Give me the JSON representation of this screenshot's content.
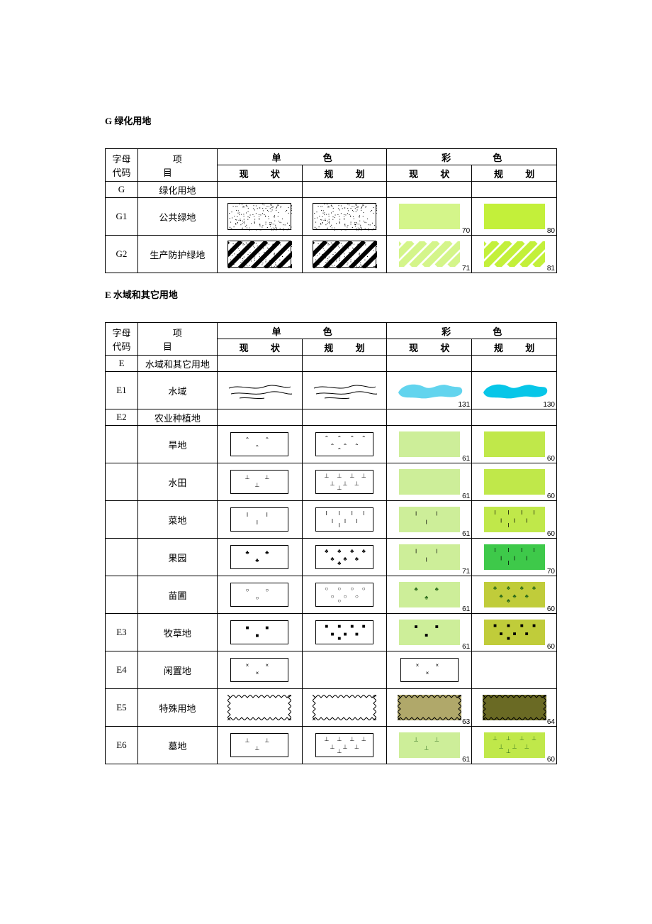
{
  "page": {
    "background_color": "#ffffff",
    "text_color": "#000000",
    "font_family": "SimSun",
    "base_fontsize": 13,
    "swatch_num_fontsize": 10
  },
  "headers": {
    "code": "字母代码",
    "code_line1": "字母",
    "code_line2": "代码",
    "name": "项    目",
    "mono": "单    色",
    "color": "彩    色",
    "status": "现    状",
    "plan": "规    划"
  },
  "section_G": {
    "title": "G  绿化用地",
    "rows": [
      {
        "code": "G",
        "name": "绿化用地",
        "short": true,
        "mono_status": null,
        "mono_plan": null,
        "color_status": null,
        "color_plan": null
      },
      {
        "code": "G1",
        "name": "公共绿地",
        "short": false,
        "mono_status": {
          "type": "noise",
          "w": 90,
          "h": 38,
          "border": "#000000",
          "bg": "#ffffff",
          "dot_color": "#000000",
          "density": 180
        },
        "mono_plan": {
          "type": "noise",
          "w": 90,
          "h": 38,
          "border": "#000000",
          "bg": "#ffffff",
          "dot_color": "#000000",
          "density": 180
        },
        "color_status": {
          "type": "solid",
          "w": 86,
          "h": 36,
          "fill": "#d4f58a",
          "num": 70
        },
        "color_plan": {
          "type": "solid",
          "w": 86,
          "h": 36,
          "fill": "#c3f03a",
          "num": 80
        }
      },
      {
        "code": "G2",
        "name": "生产防护绿地",
        "short": false,
        "mono_status": {
          "type": "hatch_noise",
          "w": 90,
          "h": 38,
          "border": "#000000",
          "bg": "#ffffff",
          "stripe": "#000000",
          "density": 120
        },
        "mono_plan": {
          "type": "hatch_noise",
          "w": 90,
          "h": 38,
          "border": "#000000",
          "bg": "#ffffff",
          "stripe": "#000000",
          "density": 120
        },
        "color_status": {
          "type": "diag_stripe",
          "w": 86,
          "h": 36,
          "bg": "#ffffff",
          "stripe": "#d4f58a",
          "num": 71
        },
        "color_plan": {
          "type": "diag_stripe",
          "w": 86,
          "h": 36,
          "bg": "#ffffff",
          "stripe": "#c3f03a",
          "num": 81
        }
      }
    ]
  },
  "section_E": {
    "title": "E  水域和其它用地",
    "rows": [
      {
        "code": "E",
        "name": "水域和其它用地",
        "short": true,
        "mono_status": null,
        "mono_plan": null,
        "color_status": null,
        "color_plan": null
      },
      {
        "code": "E1",
        "name": "水域",
        "short": false,
        "mono_status": {
          "type": "water_lines",
          "w": 96,
          "h": 34,
          "stroke": "#000000"
        },
        "mono_plan": {
          "type": "water_lines",
          "w": 96,
          "h": 34,
          "stroke": "#000000"
        },
        "color_status": {
          "type": "water_blob",
          "w": 96,
          "h": 34,
          "fill": "#62d4ee",
          "num": 131
        },
        "color_plan": {
          "type": "water_blob",
          "w": 96,
          "h": 34,
          "fill": "#07c6e8",
          "num": 130
        }
      },
      {
        "code": "E2",
        "name": "农业种植地",
        "short": true,
        "mono_status": null,
        "mono_plan": null,
        "color_status": null,
        "color_plan": null
      },
      {
        "code": "",
        "name": "旱地",
        "short": false,
        "mono_status": {
          "type": "glyph_box",
          "w": 82,
          "h": 34,
          "glyph": "⌃",
          "count": 3,
          "border": "#000000"
        },
        "mono_plan": {
          "type": "glyph_box",
          "w": 82,
          "h": 34,
          "glyph": "⌃",
          "count": 8,
          "border": "#000000"
        },
        "color_status": {
          "type": "solid",
          "w": 86,
          "h": 36,
          "fill": "#cdee99",
          "num": 61
        },
        "color_plan": {
          "type": "solid",
          "w": 86,
          "h": 36,
          "fill": "#c0e84a",
          "num": 60
        }
      },
      {
        "code": "",
        "name": "水田",
        "short": false,
        "mono_status": {
          "type": "glyph_box",
          "w": 82,
          "h": 34,
          "glyph": "⊥",
          "count": 3,
          "border": "#000000"
        },
        "mono_plan": {
          "type": "glyph_box",
          "w": 82,
          "h": 34,
          "glyph": "⊥",
          "count": 8,
          "border": "#000000"
        },
        "color_status": {
          "type": "solid",
          "w": 86,
          "h": 36,
          "fill": "#cdee99",
          "num": 61
        },
        "color_plan": {
          "type": "solid",
          "w": 86,
          "h": 36,
          "fill": "#c0e84a",
          "num": 60
        }
      },
      {
        "code": "",
        "name": "菜地",
        "short": false,
        "mono_status": {
          "type": "glyph_box",
          "w": 82,
          "h": 34,
          "glyph": "I",
          "count": 3,
          "border": "#000000"
        },
        "mono_plan": {
          "type": "glyph_box",
          "w": 82,
          "h": 34,
          "glyph": "I",
          "count": 8,
          "border": "#000000"
        },
        "color_status": {
          "type": "glyph_solid",
          "w": 86,
          "h": 36,
          "fill": "#cdee99",
          "glyph": "I",
          "count": 3,
          "glyph_color": "#000000",
          "num": 61
        },
        "color_plan": {
          "type": "glyph_solid",
          "w": 86,
          "h": 36,
          "fill": "#c0e84a",
          "glyph": "I",
          "count": 8,
          "glyph_color": "#000000",
          "num": 60
        }
      },
      {
        "code": "",
        "name": "果园",
        "short": false,
        "mono_status": {
          "type": "glyph_box",
          "w": 82,
          "h": 34,
          "glyph": "♣",
          "count": 3,
          "border": "#000000"
        },
        "mono_plan": {
          "type": "glyph_box",
          "w": 82,
          "h": 34,
          "glyph": "♣",
          "count": 8,
          "border": "#000000"
        },
        "color_status": {
          "type": "glyph_solid",
          "w": 86,
          "h": 36,
          "fill": "#cdee99",
          "glyph": "I",
          "count": 3,
          "glyph_color": "#000000",
          "num": 71
        },
        "color_plan": {
          "type": "glyph_solid",
          "w": 86,
          "h": 36,
          "fill": "#3ec94a",
          "glyph": "I",
          "count": 8,
          "glyph_color": "#000000",
          "num": 70
        }
      },
      {
        "code": "",
        "name": "苗圃",
        "short": false,
        "mono_status": {
          "type": "glyph_box",
          "w": 82,
          "h": 34,
          "glyph": "○",
          "count": 3,
          "border": "#000000"
        },
        "mono_plan": {
          "type": "glyph_box",
          "w": 82,
          "h": 34,
          "glyph": "○",
          "count": 8,
          "border": "#000000"
        },
        "color_status": {
          "type": "glyph_solid",
          "w": 86,
          "h": 36,
          "fill": "#cdee99",
          "glyph": "♣",
          "count": 3,
          "glyph_color": "#2a6a1a",
          "num": 61
        },
        "color_plan": {
          "type": "glyph_solid",
          "w": 86,
          "h": 36,
          "fill": "#c0cc3a",
          "glyph": "♣",
          "count": 8,
          "glyph_color": "#2a6a1a",
          "num": 60
        }
      },
      {
        "code": "E3",
        "name": "牧草地",
        "short": false,
        "mono_status": {
          "type": "glyph_box",
          "w": 82,
          "h": 34,
          "glyph": "■",
          "count": 3,
          "border": "#000000"
        },
        "mono_plan": {
          "type": "glyph_box",
          "w": 82,
          "h": 34,
          "glyph": "■",
          "count": 8,
          "border": "#000000"
        },
        "color_status": {
          "type": "glyph_solid",
          "w": 86,
          "h": 36,
          "fill": "#cdee99",
          "glyph": "■",
          "count": 3,
          "glyph_color": "#000000",
          "num": 61
        },
        "color_plan": {
          "type": "glyph_solid",
          "w": 86,
          "h": 36,
          "fill": "#c0cc3a",
          "glyph": "■",
          "count": 8,
          "glyph_color": "#000000",
          "num": 60
        }
      },
      {
        "code": "E4",
        "name": "闲置地",
        "short": false,
        "mono_status": {
          "type": "glyph_box",
          "w": 82,
          "h": 34,
          "glyph": "×",
          "count": 3,
          "border": "#000000"
        },
        "mono_plan": null,
        "color_status": {
          "type": "glyph_box",
          "w": 82,
          "h": 34,
          "glyph": "×",
          "count": 3,
          "border": "#000000"
        },
        "color_plan": null
      },
      {
        "code": "E5",
        "name": "特殊用地",
        "short": false,
        "mono_status": {
          "type": "diamond_border",
          "w": 90,
          "h": 36,
          "bg": "#ffffff",
          "stroke": "#000000"
        },
        "mono_plan": {
          "type": "diamond_border",
          "w": 90,
          "h": 36,
          "bg": "#ffffff",
          "stroke": "#000000"
        },
        "color_status": {
          "type": "diamond_border",
          "w": 90,
          "h": 36,
          "bg": "#b0a86a",
          "stroke": "#000000",
          "num": 63
        },
        "color_plan": {
          "type": "diamond_border",
          "w": 90,
          "h": 36,
          "bg": "#6a6a24",
          "stroke": "#000000",
          "num": 64
        }
      },
      {
        "code": "E6",
        "name": "墓地",
        "short": false,
        "mono_status": {
          "type": "glyph_box",
          "w": 82,
          "h": 34,
          "glyph": "⊥",
          "count": 3,
          "border": "#000000"
        },
        "mono_plan": {
          "type": "glyph_box",
          "w": 82,
          "h": 34,
          "glyph": "⊥",
          "count": 8,
          "border": "#000000"
        },
        "color_status": {
          "type": "glyph_solid",
          "w": 86,
          "h": 36,
          "fill": "#cdee99",
          "glyph": "⊥",
          "count": 3,
          "glyph_color": "#2a6a1a",
          "num": 61
        },
        "color_plan": {
          "type": "glyph_solid",
          "w": 86,
          "h": 36,
          "fill": "#c0e84a",
          "glyph": "⊥",
          "count": 8,
          "glyph_color": "#2a6a1a",
          "num": 60
        }
      }
    ]
  }
}
